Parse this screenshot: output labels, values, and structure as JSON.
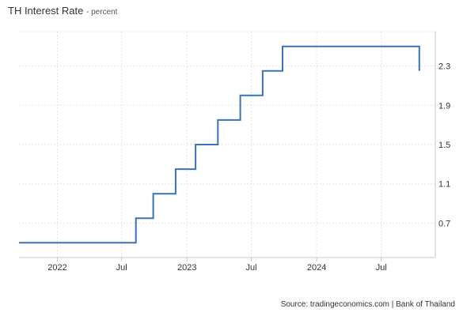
{
  "chart_data": {
    "type": "line",
    "step": true,
    "title": "TH Interest Rate",
    "subtitle": "percent",
    "source": "Source: tradingeconomics.com | Bank of Thailand",
    "y_axis_position": "right",
    "grid": true,
    "ylim": [
      0.35,
      2.65
    ],
    "yticks": [
      {
        "value": 0.7,
        "label": "0.7"
      },
      {
        "value": 1.1,
        "label": "1.1"
      },
      {
        "value": 1.5,
        "label": "1.5"
      },
      {
        "value": 1.9,
        "label": "1.9"
      },
      {
        "value": 2.3,
        "label": "2.3"
      }
    ],
    "xlim": [
      "2021-09-15",
      "2024-11-30"
    ],
    "xticks": [
      {
        "date": "2022-01-01",
        "label": "2022"
      },
      {
        "date": "2022-07-01",
        "label": "Jul"
      },
      {
        "date": "2023-01-01",
        "label": "2023"
      },
      {
        "date": "2023-07-01",
        "label": "Jul"
      },
      {
        "date": "2024-01-01",
        "label": "2024"
      },
      {
        "date": "2024-07-01",
        "label": "Jul"
      }
    ],
    "line_color": "#3a73b5",
    "series": [
      {
        "name": "",
        "points": [
          {
            "date": "2021-09-15",
            "value": 0.5
          },
          {
            "date": "2022-08-10",
            "value": 0.75
          },
          {
            "date": "2022-09-28",
            "value": 1.0
          },
          {
            "date": "2022-11-30",
            "value": 1.25
          },
          {
            "date": "2023-01-25",
            "value": 1.5
          },
          {
            "date": "2023-03-29",
            "value": 1.75
          },
          {
            "date": "2023-05-31",
            "value": 2.0
          },
          {
            "date": "2023-08-02",
            "value": 2.25
          },
          {
            "date": "2023-09-27",
            "value": 2.5
          },
          {
            "date": "2024-10-16",
            "value": 2.25
          }
        ]
      }
    ]
  }
}
